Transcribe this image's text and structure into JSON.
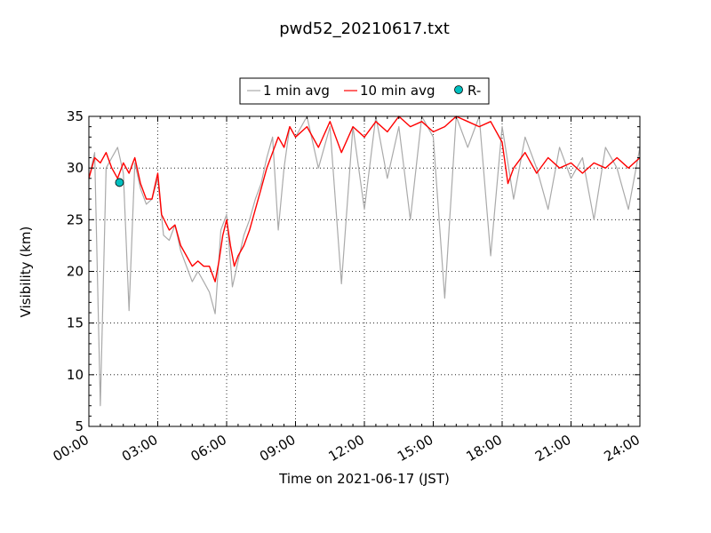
{
  "chart_data": {
    "type": "line",
    "title": "pwd52_20210617.txt",
    "xlabel": "Time on 2021-06-17 (JST)",
    "ylabel": "Visibility (km)",
    "xlim": [
      "00:00",
      "24:00"
    ],
    "ylim": [
      5,
      35
    ],
    "x_ticks": [
      "00:00",
      "03:00",
      "06:00",
      "09:00",
      "12:00",
      "15:00",
      "18:00",
      "21:00",
      "24:00"
    ],
    "y_ticks": [
      5,
      10,
      15,
      20,
      25,
      30,
      35
    ],
    "grid": true,
    "legend_position": "top-center",
    "series": [
      {
        "name": "1 min avg",
        "color": "#aaaaaa",
        "style": "line",
        "x": [
          "00:00",
          "00:15",
          "00:30",
          "00:45",
          "01:00",
          "01:15",
          "01:30",
          "01:45",
          "02:00",
          "02:15",
          "02:30",
          "02:45",
          "03:00",
          "03:15",
          "03:30",
          "03:45",
          "04:00",
          "04:15",
          "04:30",
          "04:45",
          "05:00",
          "05:15",
          "05:30",
          "05:45",
          "06:00",
          "06:15",
          "06:30",
          "06:45",
          "07:00",
          "07:15",
          "07:30",
          "07:45",
          "08:00",
          "08:15",
          "08:30",
          "08:45",
          "09:00",
          "09:30",
          "10:00",
          "10:30",
          "11:00",
          "11:30",
          "12:00",
          "12:30",
          "13:00",
          "13:30",
          "14:00",
          "14:30",
          "15:00",
          "15:30",
          "16:00",
          "16:30",
          "17:00",
          "17:30",
          "18:00",
          "18:30",
          "19:00",
          "19:30",
          "20:00",
          "20:30",
          "21:00",
          "21:30",
          "22:00",
          "22:30",
          "23:00",
          "23:30",
          "24:00"
        ],
        "y": [
          29.0,
          31.5,
          7.0,
          30.0,
          31.0,
          32.0,
          29.5,
          16.2,
          30.5,
          28.0,
          26.5,
          27.0,
          29.0,
          23.5,
          23.0,
          24.5,
          22.0,
          20.5,
          19.0,
          20.0,
          19.0,
          18.0,
          15.9,
          24.0,
          25.5,
          18.5,
          21.0,
          23.5,
          25.0,
          27.0,
          28.5,
          31.0,
          33.0,
          24.0,
          30.0,
          34.0,
          33.0,
          35.0,
          30.0,
          34.0,
          18.8,
          34.0,
          26.0,
          35.0,
          29.0,
          34.0,
          25.0,
          35.0,
          33.0,
          17.4,
          35.0,
          32.0,
          35.0,
          21.5,
          34.0,
          27.0,
          33.0,
          30.0,
          26.0,
          32.0,
          29.0,
          31.0,
          25.0,
          32.0,
          30.0,
          26.0,
          32.0
        ]
      },
      {
        "name": "10 min avg",
        "color": "#ff0000",
        "style": "line",
        "x": [
          "00:00",
          "00:15",
          "00:30",
          "00:45",
          "01:00",
          "01:15",
          "01:30",
          "01:45",
          "02:00",
          "02:15",
          "02:30",
          "02:45",
          "03:00",
          "03:10",
          "03:30",
          "03:45",
          "04:00",
          "04:15",
          "04:30",
          "04:45",
          "05:00",
          "05:15",
          "05:30",
          "05:40",
          "05:50",
          "06:00",
          "06:10",
          "06:20",
          "06:30",
          "06:45",
          "07:00",
          "07:15",
          "07:30",
          "07:45",
          "08:00",
          "08:15",
          "08:30",
          "08:45",
          "09:00",
          "09:30",
          "10:00",
          "10:30",
          "11:00",
          "11:30",
          "12:00",
          "12:30",
          "13:00",
          "13:30",
          "14:00",
          "14:30",
          "15:00",
          "15:30",
          "16:00",
          "16:30",
          "17:00",
          "17:30",
          "18:00",
          "18:15",
          "18:30",
          "19:00",
          "19:30",
          "20:00",
          "20:30",
          "21:00",
          "21:30",
          "22:00",
          "22:30",
          "23:00",
          "23:30",
          "24:00"
        ],
        "y": [
          29.0,
          31.0,
          30.5,
          31.5,
          30.0,
          29.0,
          30.5,
          29.5,
          31.0,
          28.5,
          27.0,
          27.0,
          29.5,
          25.5,
          24.0,
          24.5,
          22.5,
          21.5,
          20.5,
          21.0,
          20.5,
          20.5,
          19.0,
          21.0,
          23.5,
          25.0,
          22.5,
          20.5,
          21.5,
          22.5,
          24.0,
          26.0,
          28.0,
          30.0,
          31.5,
          33.0,
          32.0,
          34.0,
          33.0,
          34.0,
          32.0,
          34.5,
          31.5,
          34.0,
          33.0,
          34.5,
          33.5,
          35.0,
          34.0,
          34.5,
          33.5,
          34.0,
          35.0,
          34.5,
          34.0,
          34.5,
          32.5,
          28.5,
          30.0,
          31.5,
          29.5,
          31.0,
          30.0,
          30.5,
          29.5,
          30.5,
          30.0,
          31.0,
          30.0,
          31.0
        ]
      },
      {
        "name": "R-",
        "color": "#00bfbf",
        "style": "marker",
        "x": [
          "01:20"
        ],
        "y": [
          28.6
        ]
      }
    ]
  }
}
